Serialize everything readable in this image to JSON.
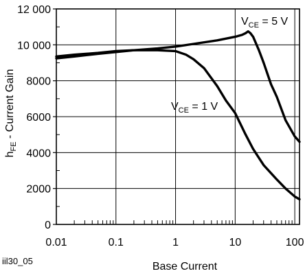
{
  "figure_id": "iil30_05",
  "chart_data": {
    "type": "line",
    "xlabel": "Base Current",
    "ylabel": {
      "main": "h",
      "sub": "FE",
      "rest": " - Current Gain"
    },
    "x_scale": "log",
    "xlim": [
      0.01,
      120
    ],
    "ylim": [
      0,
      12000
    ],
    "grid": true,
    "x_ticks": [
      {
        "value": 0.01,
        "label": "0.01"
      },
      {
        "value": 0.1,
        "label": "0.1"
      },
      {
        "value": 1,
        "label": "1"
      },
      {
        "value": 10,
        "label": "10"
      },
      {
        "value": 100,
        "label": "100"
      }
    ],
    "y_ticks": [
      {
        "value": 0,
        "label": "0"
      },
      {
        "value": 2000,
        "label": "2000"
      },
      {
        "value": 4000,
        "label": "4000"
      },
      {
        "value": 6000,
        "label": "6000"
      },
      {
        "value": 8000,
        "label": "8000"
      },
      {
        "value": 10000,
        "label": "10 000"
      },
      {
        "value": 12000,
        "label": "12 000"
      }
    ],
    "series": [
      {
        "name": "VCE = 5 V",
        "label": {
          "pre": "V",
          "sub": "CE",
          "post": " = 5 V"
        },
        "x": [
          0.01,
          0.02,
          0.05,
          0.1,
          0.2,
          0.5,
          1,
          2,
          5,
          10,
          13,
          15,
          16.5,
          18,
          20,
          25,
          30,
          40,
          50,
          70,
          100,
          120
        ],
        "y": [
          9250,
          9350,
          9500,
          9600,
          9700,
          9800,
          9900,
          10050,
          10250,
          10450,
          10550,
          10650,
          10750,
          10650,
          10450,
          9700,
          9000,
          7800,
          7100,
          5800,
          4900,
          4600
        ]
      },
      {
        "name": "VCE = 1 V",
        "label": {
          "pre": "V",
          "sub": "CE",
          "post": " = 1 V"
        },
        "x": [
          0.01,
          0.02,
          0.05,
          0.1,
          0.2,
          0.5,
          1,
          1.5,
          2,
          3,
          5,
          7,
          10,
          15,
          20,
          30,
          50,
          70,
          100,
          120
        ],
        "y": [
          9350,
          9450,
          9550,
          9650,
          9700,
          9700,
          9650,
          9450,
          9200,
          8700,
          7700,
          6900,
          6200,
          5000,
          4200,
          3300,
          2500,
          2000,
          1550,
          1400
        ]
      }
    ]
  }
}
